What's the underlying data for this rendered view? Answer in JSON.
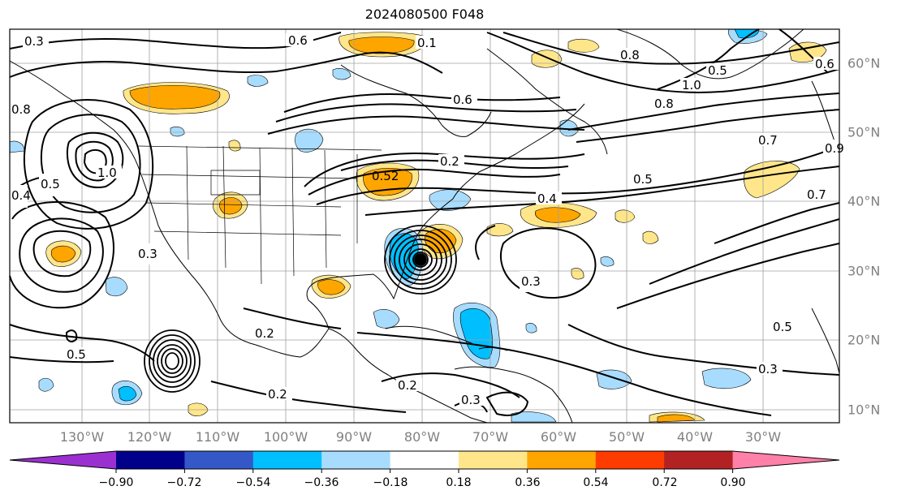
{
  "title": "2024080500 F048",
  "longitude_labels": [
    "130°W",
    "120°W",
    "110°W",
    "100°W",
    "90°W",
    "80°W",
    "70°W",
    "60°W",
    "50°W",
    "40°W",
    "30°W"
  ],
  "latitude_labels": [
    "60°N",
    "50°N",
    "40°N",
    "30°N",
    "20°N",
    "10°N"
  ],
  "colorbar": {
    "ticks": [
      "−0.90",
      "−0.72",
      "−0.54",
      "−0.36",
      "−0.18",
      "0.18",
      "0.36",
      "0.54",
      "0.72",
      "0.90"
    ],
    "colors": [
      "#9b30d0",
      "#00008b",
      "#3458c8",
      "#00bfff",
      "#a8dcff",
      "#ffffff",
      "#ffe68a",
      "#ffa500",
      "#ff3c00",
      "#b22222",
      "#ff80a8"
    ]
  },
  "contour_labels": [
    {
      "text": "0.6"
    },
    {
      "text": "0.1"
    },
    {
      "text": "0.8"
    },
    {
      "text": "0.6"
    },
    {
      "text": "0.5"
    },
    {
      "text": "1.0"
    },
    {
      "text": "0.8"
    },
    {
      "text": "0.7"
    },
    {
      "text": "0.9"
    },
    {
      "text": "0.5"
    },
    {
      "text": "0.4"
    },
    {
      "text": "0.7"
    },
    {
      "text": "0.2"
    },
    {
      "text": "0.52"
    },
    {
      "text": "0.3"
    },
    {
      "text": "0.3"
    },
    {
      "text": "0.2"
    },
    {
      "text": "0.5"
    },
    {
      "text": "0.4"
    },
    {
      "text": "0.5"
    },
    {
      "text": "0.2"
    },
    {
      "text": "0.2"
    },
    {
      "text": "0.3"
    },
    {
      "text": "0.5"
    },
    {
      "text": "0.3"
    },
    {
      "text": "0.6"
    },
    {
      "text": "1.0"
    },
    {
      "text": "0.8"
    },
    {
      "text": "0.3"
    }
  ]
}
